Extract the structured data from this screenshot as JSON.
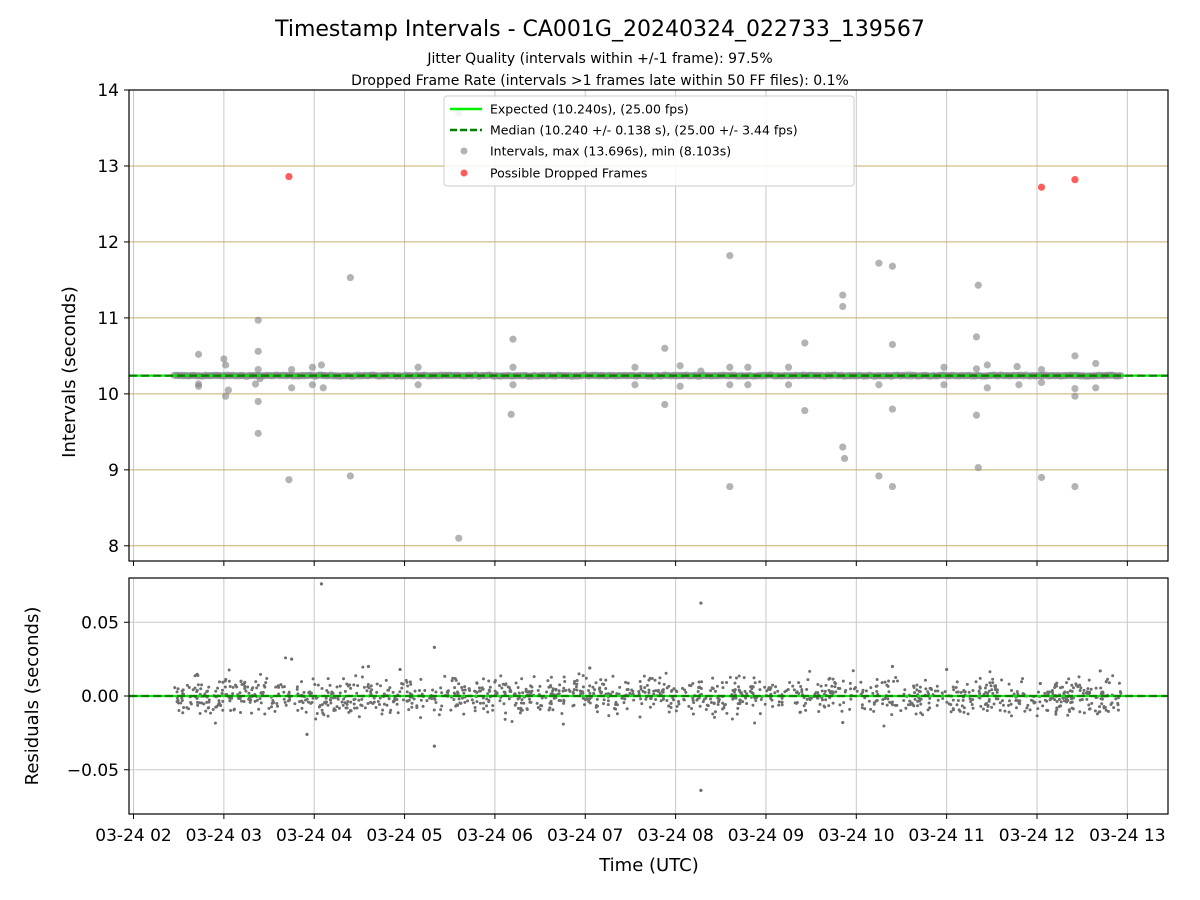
{
  "title": "Timestamp Intervals - CA001G_20240324_022733_139567",
  "subtitle_lines": [
    "Jitter Quality (intervals within +/-1 frame): 97.5%",
    "Dropped Frame Rate (intervals >1 frames late within 50 FF files): 0.1%"
  ],
  "colors": {
    "expected": "#00ee00",
    "median": "#008000",
    "intervals": "#808080",
    "dropped": "#ff3333",
    "frame_grid": "#c8b06a",
    "grid": "#c8c8c8",
    "residuals": "#6e6e6e"
  },
  "chart_data": [
    {
      "type": "scatter",
      "ylabel": "Intervals (seconds)",
      "ylim": [
        7.8,
        14
      ],
      "yticks": [
        "8",
        "9",
        "10",
        "11",
        "12",
        "13",
        "14"
      ],
      "xlim_hours": [
        1.95,
        13.45
      ],
      "time_grid_hours": [
        2,
        3,
        4,
        5,
        6,
        7,
        8,
        9,
        10,
        11,
        12,
        13
      ],
      "frame_gridlines": [
        8.0,
        9.0,
        10.0,
        11.0,
        12.0,
        13.0
      ],
      "grid": true,
      "legend_position": "top-center",
      "legend": [
        "Expected (10.240s), (25.00 fps)",
        "Median (10.240 +/- 0.138 s), (25.00 +/- 3.44 fps)",
        "Intervals, max (13.696s), min (8.103s)",
        "Possible Dropped Frames"
      ],
      "expected_interval": 10.24,
      "median_interval": 10.24,
      "baseline_x_range_hours": [
        2.45,
        12.93
      ],
      "baseline_value": 10.24,
      "series": [
        {
          "name": "Intervals, max (13.696s), min (8.103s)",
          "points": [
            [
              2.72,
              10.52
            ],
            [
              2.72,
              10.1
            ],
            [
              2.72,
              10.13
            ],
            [
              3.0,
              10.46
            ],
            [
              3.02,
              10.38
            ],
            [
              3.02,
              9.97
            ],
            [
              3.05,
              10.05
            ],
            [
              3.38,
              10.97
            ],
            [
              3.38,
              10.56
            ],
            [
              3.38,
              10.32
            ],
            [
              3.38,
              9.9
            ],
            [
              3.38,
              9.48
            ],
            [
              3.35,
              10.13
            ],
            [
              3.4,
              10.2
            ],
            [
              3.72,
              8.87
            ],
            [
              3.75,
              10.32
            ],
            [
              3.75,
              10.08
            ],
            [
              3.98,
              10.35
            ],
            [
              3.98,
              10.12
            ],
            [
              4.08,
              10.38
            ],
            [
              4.1,
              10.08
            ],
            [
              4.4,
              11.53
            ],
            [
              4.4,
              8.92
            ],
            [
              5.15,
              10.35
            ],
            [
              5.15,
              10.12
            ],
            [
              5.6,
              8.1
            ],
            [
              5.6,
              13.7
            ],
            [
              6.2,
              10.72
            ],
            [
              6.18,
              9.73
            ],
            [
              6.2,
              10.35
            ],
            [
              6.2,
              10.12
            ],
            [
              7.55,
              10.35
            ],
            [
              7.55,
              10.12
            ],
            [
              7.88,
              10.6
            ],
            [
              7.88,
              9.86
            ],
            [
              8.05,
              10.37
            ],
            [
              8.05,
              10.1
            ],
            [
              8.28,
              10.3
            ],
            [
              8.6,
              11.82
            ],
            [
              8.6,
              10.35
            ],
            [
              8.6,
              10.12
            ],
            [
              8.6,
              8.78
            ],
            [
              8.8,
              10.35
            ],
            [
              8.8,
              10.12
            ],
            [
              9.25,
              10.35
            ],
            [
              9.25,
              10.12
            ],
            [
              9.43,
              10.67
            ],
            [
              9.43,
              9.78
            ],
            [
              9.85,
              11.3
            ],
            [
              9.85,
              11.15
            ],
            [
              9.85,
              9.3
            ],
            [
              9.87,
              9.15
            ],
            [
              10.25,
              11.72
            ],
            [
              10.25,
              10.12
            ],
            [
              10.25,
              8.92
            ],
            [
              10.4,
              11.68
            ],
            [
              10.4,
              10.65
            ],
            [
              10.4,
              9.8
            ],
            [
              10.4,
              8.78
            ],
            [
              10.97,
              10.35
            ],
            [
              10.97,
              10.12
            ],
            [
              11.33,
              10.75
            ],
            [
              11.33,
              10.33
            ],
            [
              11.33,
              9.72
            ],
            [
              11.35,
              11.43
            ],
            [
              11.35,
              9.03
            ],
            [
              11.45,
              10.38
            ],
            [
              11.45,
              10.08
            ],
            [
              11.78,
              10.36
            ],
            [
              11.8,
              10.12
            ],
            [
              12.05,
              10.32
            ],
            [
              12.05,
              10.15
            ],
            [
              12.05,
              8.9
            ],
            [
              12.42,
              10.5
            ],
            [
              12.42,
              9.97
            ],
            [
              12.42,
              10.07
            ],
            [
              12.42,
              8.78
            ],
            [
              12.65,
              10.4
            ],
            [
              12.65,
              10.08
            ]
          ]
        },
        {
          "name": "Possible Dropped Frames",
          "points": [
            [
              3.72,
              12.86
            ],
            [
              12.05,
              12.72
            ],
            [
              12.42,
              12.82
            ]
          ]
        }
      ]
    },
    {
      "type": "scatter",
      "xlabel": "Time (UTC)",
      "ylabel": "Residuals (seconds)",
      "ylim": [
        -0.08,
        0.08
      ],
      "yticks": [
        "0.05",
        "0.00",
        "−0.05"
      ],
      "ytick_values": [
        0.05,
        0.0,
        -0.05
      ],
      "xticks": [
        "03-24 02",
        "03-24 03",
        "03-24 04",
        "03-24 05",
        "03-24 06",
        "03-24 07",
        "03-24 08",
        "03-24 09",
        "03-24 10",
        "03-24 11",
        "03-24 12",
        "03-24 13"
      ],
      "grid": true,
      "zero_line": 0.0,
      "residual_range_hours": [
        2.45,
        12.93
      ],
      "residual_spread": 0.006,
      "outliers": [
        [
          4.08,
          0.076
        ],
        [
          8.28,
          0.063
        ],
        [
          8.28,
          -0.064
        ],
        [
          3.75,
          0.025
        ],
        [
          3.92,
          -0.026
        ],
        [
          5.33,
          0.033
        ],
        [
          5.33,
          -0.034
        ],
        [
          4.6,
          0.02
        ],
        [
          4.95,
          0.018
        ],
        [
          7.05,
          0.019
        ],
        [
          9.85,
          -0.018
        ],
        [
          10.4,
          0.02
        ],
        [
          11.0,
          0.018
        ],
        [
          12.7,
          0.017
        ]
      ]
    }
  ]
}
